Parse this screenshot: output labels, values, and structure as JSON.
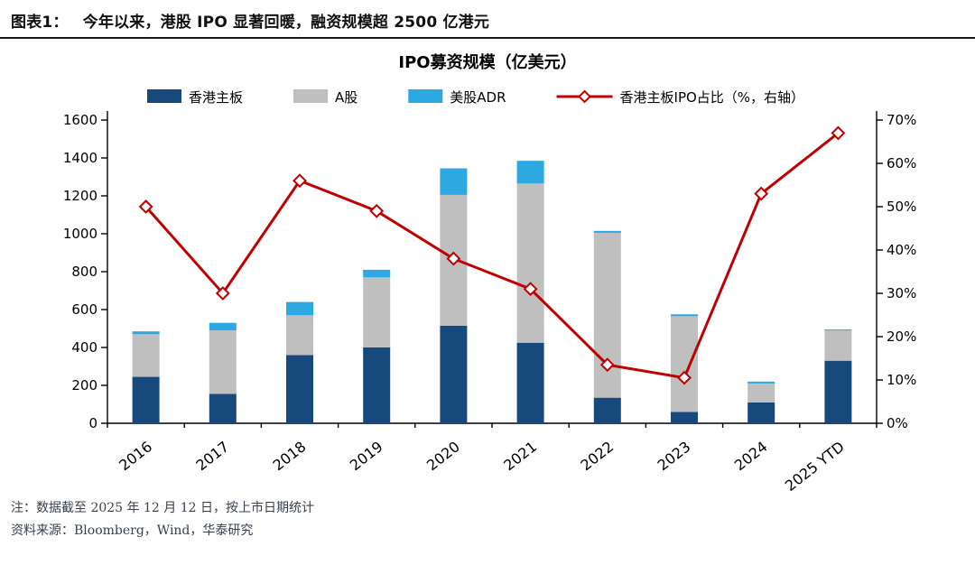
{
  "header": {
    "label": "图表1：",
    "title": "今年以来，港股 IPO 显著回暖，融资规模超 2500 亿港元"
  },
  "chart_data": {
    "type": "bar",
    "subtype": "stacked-bar-with-line",
    "title": "IPO募资规模（亿美元）",
    "categories": [
      "2016",
      "2017",
      "2018",
      "2019",
      "2020",
      "2021",
      "2022",
      "2023",
      "2024",
      "2025 YTD"
    ],
    "series": [
      {
        "name": "香港主板",
        "type": "bar",
        "color": "#17497d",
        "axis": "left",
        "values": [
          245,
          155,
          360,
          400,
          515,
          425,
          135,
          60,
          110,
          330
        ]
      },
      {
        "name": "A股",
        "type": "bar",
        "color": "#bfbfbf",
        "axis": "left",
        "values": [
          225,
          335,
          210,
          370,
          690,
          840,
          870,
          505,
          100,
          160
        ]
      },
      {
        "name": "美股ADR",
        "type": "bar",
        "color": "#2da9e1",
        "axis": "left",
        "values": [
          15,
          40,
          70,
          40,
          140,
          120,
          10,
          10,
          10,
          5
        ]
      },
      {
        "name": "香港主板IPO占比（%，右轴）",
        "type": "line",
        "color": "#c00000",
        "axis": "right",
        "values": [
          50,
          30,
          56,
          49,
          38,
          31,
          13.5,
          10.5,
          53,
          67
        ]
      }
    ],
    "left_axis": {
      "min": 0,
      "max": 1600,
      "step": 200,
      "suffix": ""
    },
    "right_axis": {
      "min": 0,
      "max": 70,
      "step": 10,
      "suffix": "%"
    },
    "legend_position": "top",
    "grid": false
  },
  "footer": {
    "note1": "注：数据截至 2025 年 12 月 12 日，按上市日期统计",
    "note2": "资料来源：Bloomberg，Wind，华泰研究"
  }
}
